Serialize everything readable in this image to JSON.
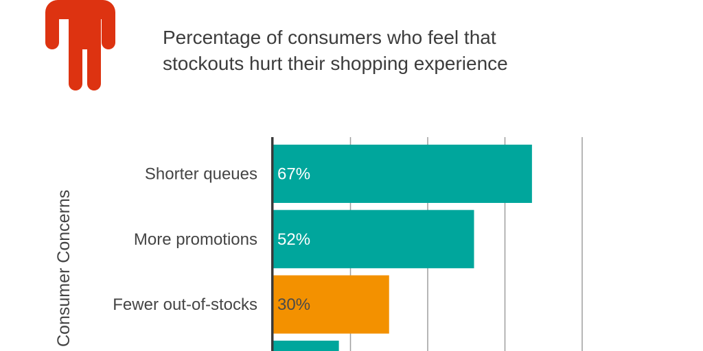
{
  "header": {
    "title_line1": "Percentage of consumers who feel that",
    "title_line2": "stockouts hurt their shopping experience",
    "icon": "person-icon",
    "icon_color": "#DD3311"
  },
  "chart_data": {
    "type": "bar",
    "orientation": "horizontal",
    "title": "Percentage of consumers who feel that stockouts hurt their shopping experience",
    "ylabel": "Consumer Concerns",
    "xlim": [
      0,
      100
    ],
    "x_gridlines": [
      20,
      40,
      60,
      80
    ],
    "grid": true,
    "categories": [
      "Shorter queues",
      "More promotions",
      "Fewer out-of-stocks",
      ""
    ],
    "values": [
      67,
      52,
      30,
      17
    ],
    "labels": [
      "67%",
      "52%",
      "30%",
      ""
    ],
    "colors": [
      "#00A69C",
      "#00A69C",
      "#F39100",
      "#00A69C"
    ],
    "label_colors": [
      "#FFFFFF",
      "#FFFFFF",
      "#4A4A4A",
      "#FFFFFF"
    ]
  }
}
